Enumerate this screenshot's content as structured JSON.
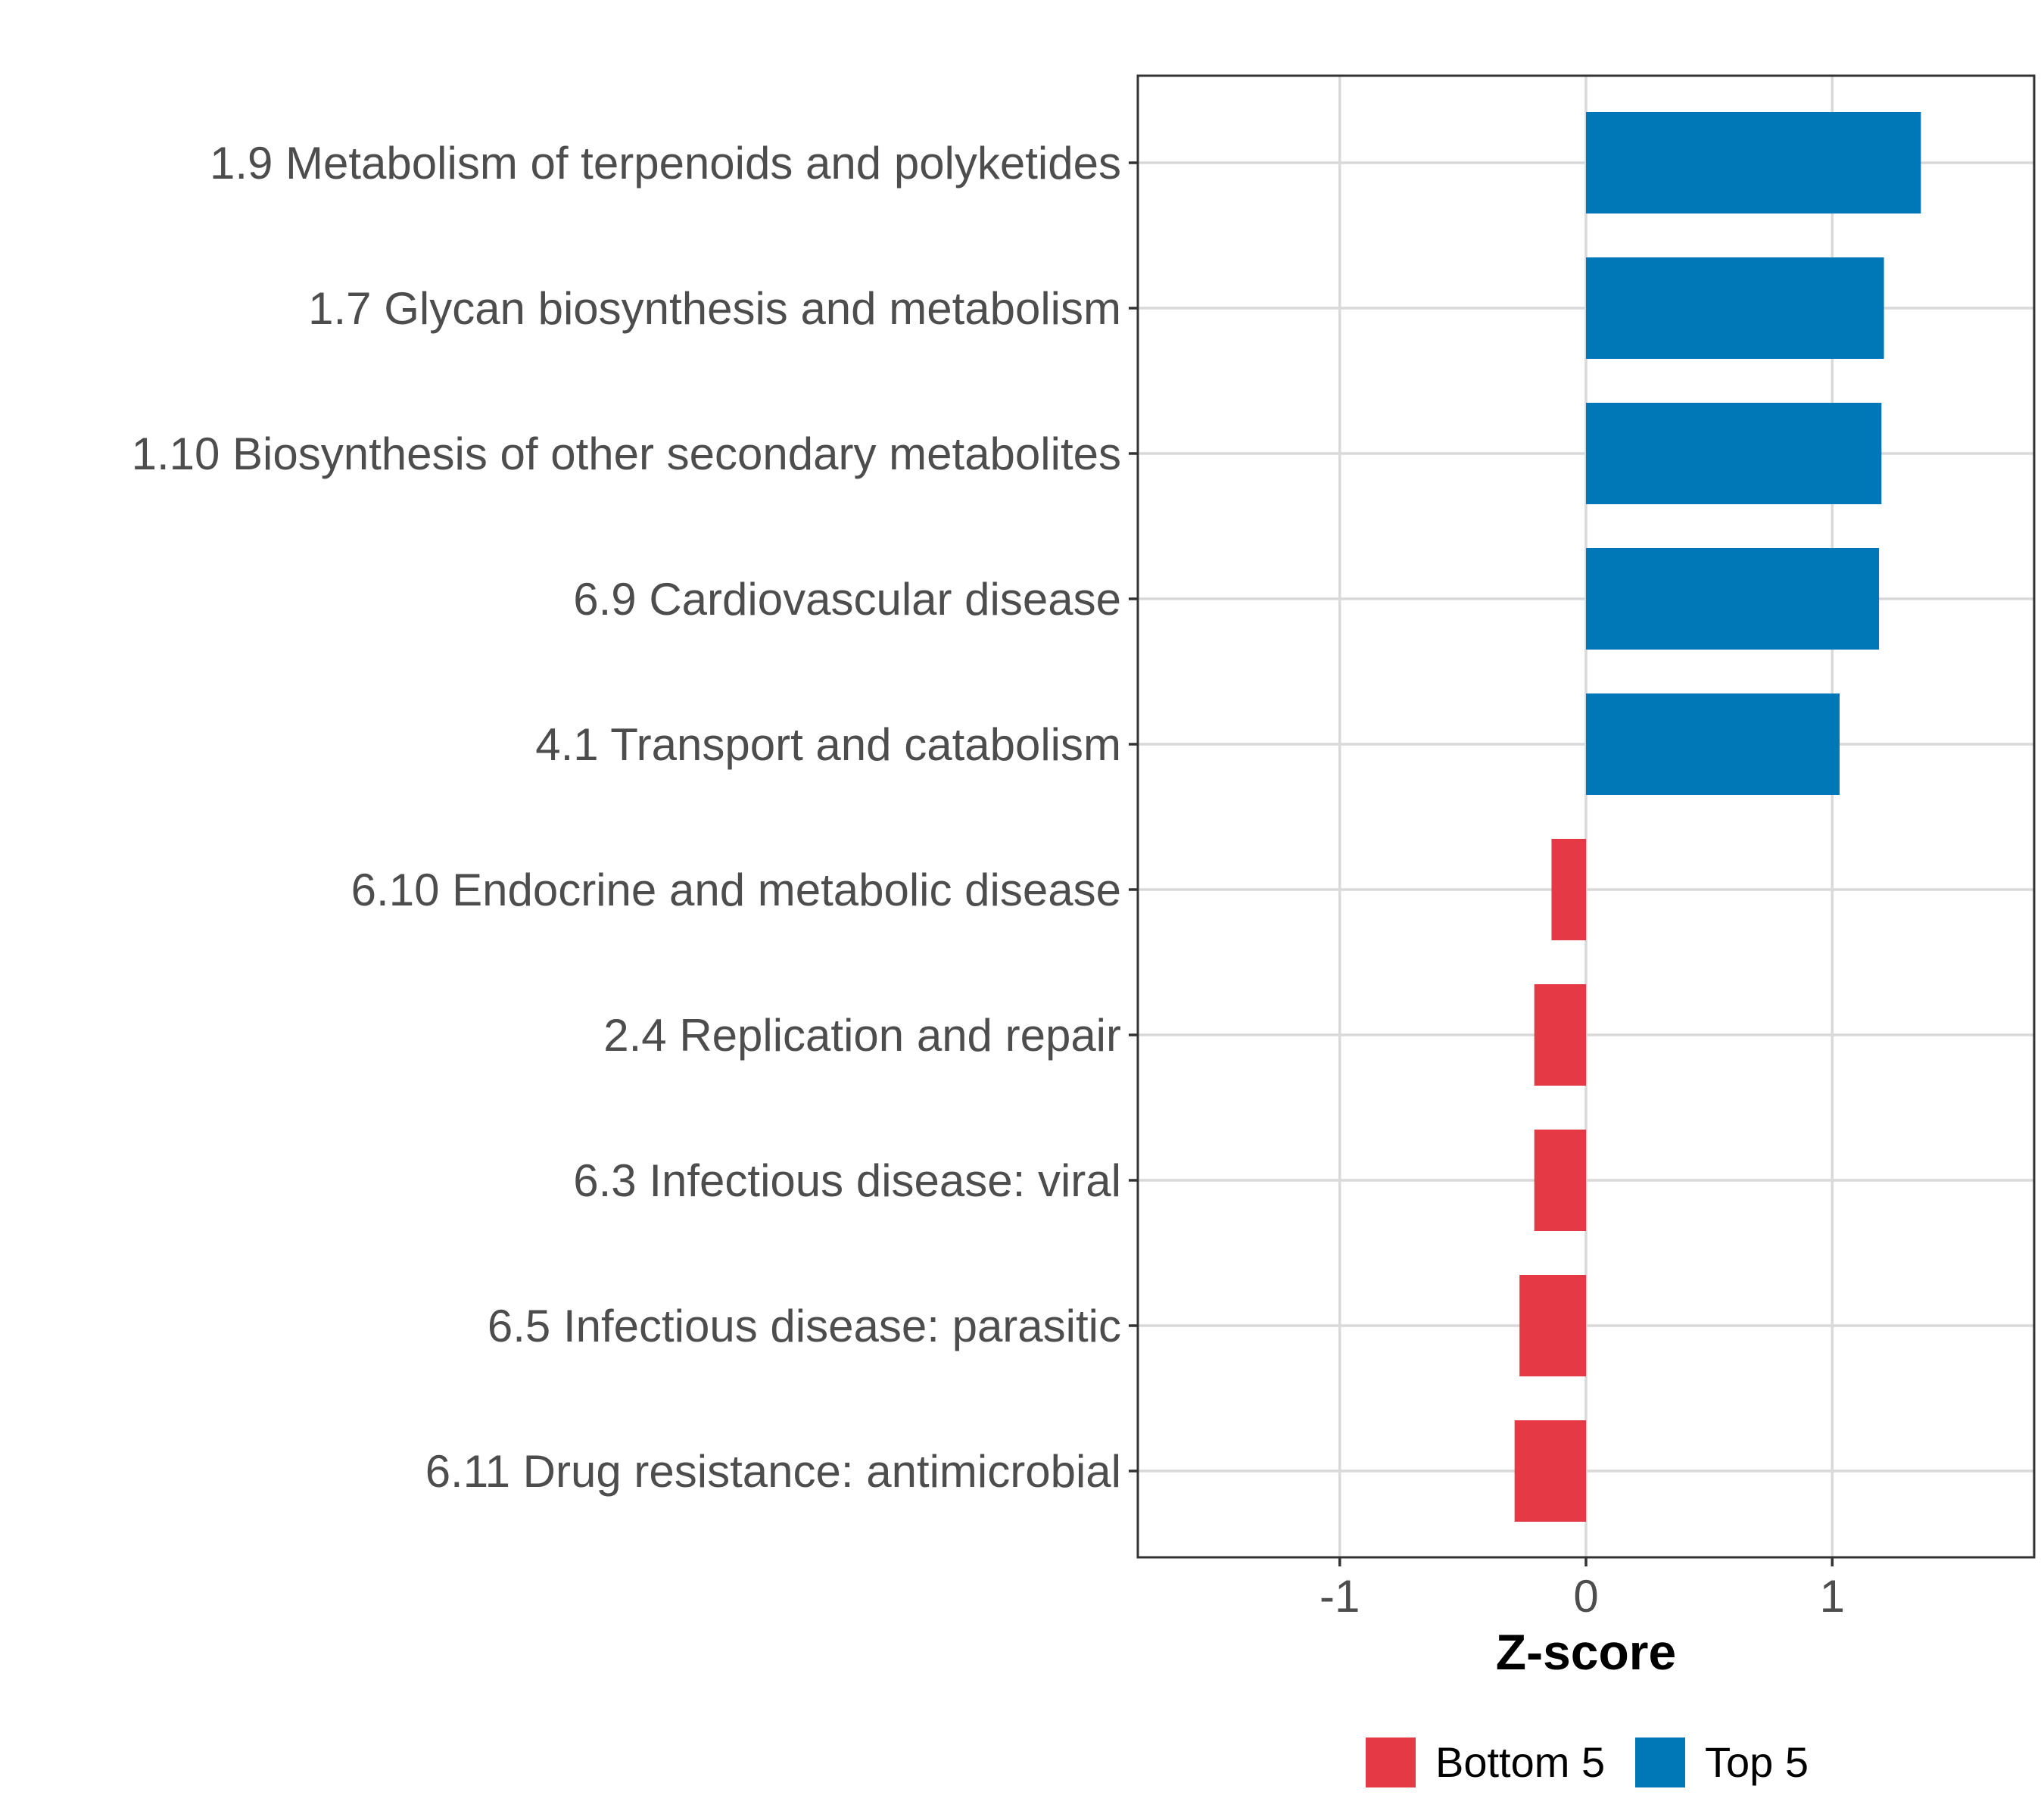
{
  "chart_data": {
    "type": "bar",
    "orientation": "horizontal",
    "title": "",
    "xlabel": "Z-score",
    "ylabel": "",
    "xlim": [
      -1.82,
      1.82
    ],
    "x_ticks": [
      -1,
      0,
      1
    ],
    "x_tick_labels": [
      "-1",
      "0",
      "1"
    ],
    "grid": true,
    "legend_position": "bottom",
    "categories": [
      "1.9 Metabolism of terpenoids and polyketides",
      "1.7 Glycan biosynthesis and metabolism",
      "1.10 Biosynthesis of other secondary metabolites",
      "6.9 Cardiovascular disease",
      "4.1 Transport and catabolism",
      "6.10 Endocrine and metabolic disease",
      "2.4 Replication and repair",
      "6.3 Infectious disease: viral",
      "6.5 Infectious disease: parasitic",
      "6.11 Drug resistance: antimicrobial"
    ],
    "values": [
      1.36,
      1.21,
      1.2,
      1.19,
      1.03,
      -0.14,
      -0.21,
      -0.21,
      -0.27,
      -0.29
    ],
    "groups": [
      "Top 5",
      "Top 5",
      "Top 5",
      "Top 5",
      "Top 5",
      "Bottom 5",
      "Bottom 5",
      "Bottom 5",
      "Bottom 5",
      "Bottom 5"
    ],
    "legend": [
      {
        "name": "Bottom 5",
        "color": "#e63946"
      },
      {
        "name": "Top 5",
        "color": "#0077b6"
      }
    ]
  }
}
